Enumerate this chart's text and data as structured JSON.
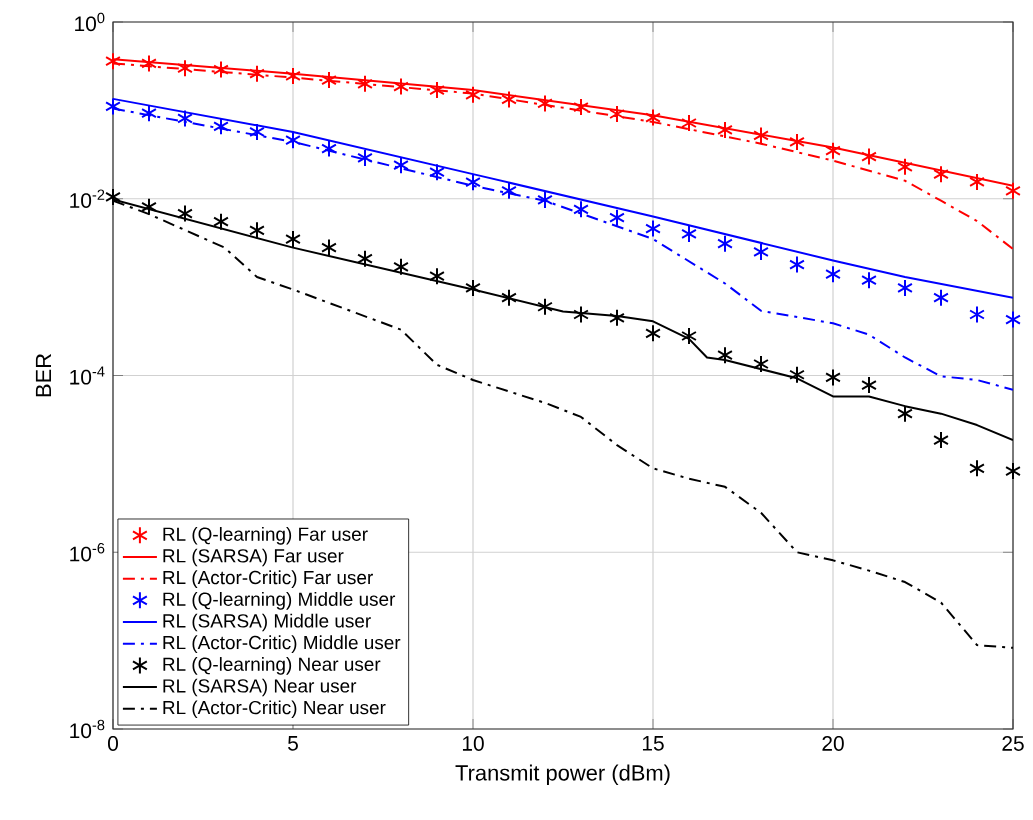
{
  "chart_data": {
    "type": "line",
    "xlabel": "Transmit power (dBm)",
    "ylabel": "BER",
    "x": [
      0,
      1,
      2,
      3,
      4,
      5,
      6,
      7,
      8,
      9,
      10,
      11,
      12,
      13,
      14,
      15,
      16,
      17,
      18,
      19,
      20,
      21,
      22,
      23,
      24,
      25
    ],
    "series": [
      {
        "name": "RL (Q-learning) Far user",
        "type": "scatter",
        "marker": "cross",
        "color": "#ff0000",
        "values": [
          0.36,
          0.34,
          0.3,
          0.29,
          0.26,
          0.245,
          0.22,
          0.2,
          0.186,
          0.17,
          0.15,
          0.133,
          0.12,
          0.109,
          0.091,
          0.083,
          0.072,
          0.06,
          0.052,
          0.044,
          0.035,
          0.03,
          0.023,
          0.019,
          0.0155,
          0.0123
        ]
      },
      {
        "name": "RL (SARSA) Far user",
        "type": "line",
        "line_style": "solid",
        "color": "#ff0000",
        "x": [
          0,
          5,
          10,
          15,
          20,
          25
        ],
        "values": [
          0.38,
          0.26,
          0.17,
          0.088,
          0.038,
          0.014
        ]
      },
      {
        "name": "RL (Actor-Critic) Far user",
        "type": "line",
        "line_style": "dashdot",
        "color": "#ff0000",
        "x": [
          0,
          5,
          10,
          15,
          18,
          20,
          22,
          23,
          24,
          25
        ],
        "values": [
          0.34,
          0.235,
          0.155,
          0.074,
          0.042,
          0.027,
          0.016,
          0.0095,
          0.0056,
          0.0027
        ]
      },
      {
        "name": "RL (Q-learning) Middle user",
        "type": "scatter",
        "marker": "cross",
        "color": "#0000ff",
        "values": [
          0.111,
          0.093,
          0.081,
          0.066,
          0.057,
          0.046,
          0.037,
          0.029,
          0.024,
          0.02,
          0.0154,
          0.0123,
          0.0097,
          0.0076,
          0.0061,
          0.0046,
          0.004,
          0.0031,
          0.0025,
          0.0018,
          0.0014,
          0.0012,
          0.00098,
          0.00076,
          0.00049,
          0.00043
        ]
      },
      {
        "name": "RL (SARSA) Middle user",
        "type": "line",
        "line_style": "solid",
        "color": "#0000ff",
        "x": [
          0,
          5,
          10,
          15,
          20,
          22,
          25
        ],
        "values": [
          0.135,
          0.057,
          0.019,
          0.0063,
          0.002,
          0.0013,
          0.00076
        ]
      },
      {
        "name": "RL (Actor-Critic) Middle user",
        "type": "line",
        "line_style": "dashdot",
        "color": "#0000ff",
        "x": [
          0,
          5,
          10,
          12,
          15,
          17,
          18,
          20,
          21,
          22,
          23,
          24,
          25
        ],
        "values": [
          0.105,
          0.044,
          0.014,
          0.0095,
          0.0035,
          0.0011,
          0.00054,
          0.00039,
          0.00029,
          0.00016,
          9.8e-05,
          8.9e-05,
          6.9e-05
        ]
      },
      {
        "name": "RL (Q-learning) Near user",
        "type": "scatter",
        "marker": "cross",
        "color": "#000000",
        "values": [
          0.0105,
          0.0081,
          0.0068,
          0.0055,
          0.0044,
          0.0035,
          0.0028,
          0.0021,
          0.0017,
          0.00133,
          0.00098,
          0.00076,
          0.0006,
          0.00049,
          0.00045,
          0.0003,
          0.00028,
          0.00017,
          0.000135,
          0.000102,
          9.5e-05,
          7.8e-05,
          3.7e-05,
          1.86e-05,
          8.9e-06,
          8.3e-06
        ]
      },
      {
        "name": "RL (SARSA) Near user",
        "type": "line",
        "line_style": "solid",
        "color": "#000000",
        "x": [
          0,
          5,
          10,
          12.5,
          14,
          15,
          16,
          16.5,
          17,
          19,
          20,
          21,
          22,
          23,
          24,
          25
        ],
        "values": [
          0.0098,
          0.0028,
          0.00094,
          0.00053,
          0.00047,
          0.00041,
          0.00026,
          0.00016,
          0.00015,
          9.3e-05,
          5.8e-05,
          5.8e-05,
          4.5e-05,
          3.7e-05,
          2.75e-05,
          1.86e-05
        ]
      },
      {
        "name": "RL (Actor-Critic) Near user",
        "type": "line",
        "line_style": "dashdot",
        "color": "#000000",
        "x": [
          0,
          1,
          3.1,
          4,
          5,
          8,
          9,
          10,
          11,
          12,
          13,
          14,
          15,
          16,
          17,
          18,
          19,
          20,
          21,
          22,
          23,
          24,
          25
        ],
        "values": [
          0.0095,
          0.0067,
          0.0028,
          0.0013,
          0.00094,
          0.00033,
          0.000132,
          8.9e-05,
          6.6e-05,
          4.9e-05,
          3.4e-05,
          1.63e-05,
          8.9e-06,
          6.8e-06,
          5.5e-06,
          2.8e-06,
          1e-06,
          8.1e-07,
          6.2e-07,
          4.6e-07,
          2.7e-07,
          8.9e-08,
          8.3e-08
        ]
      }
    ],
    "xlim": [
      0,
      25
    ],
    "xticks": [
      0,
      5,
      10,
      15,
      20,
      25
    ],
    "ylim": [
      1e-08,
      1
    ],
    "log": "y",
    "yticks": [
      {
        "value": 1e-08,
        "label": "10$^{-8}$"
      },
      {
        "value": 1e-06,
        "label": "10$^{-6}$"
      },
      {
        "value": 0.0001,
        "label": "10$^{-4}$"
      },
      {
        "value": 0.01,
        "label": "10$^{-2}$"
      },
      {
        "value": 1,
        "label": "10$^{0}$"
      }
    ],
    "grid": true,
    "legend": "bottom left"
  }
}
